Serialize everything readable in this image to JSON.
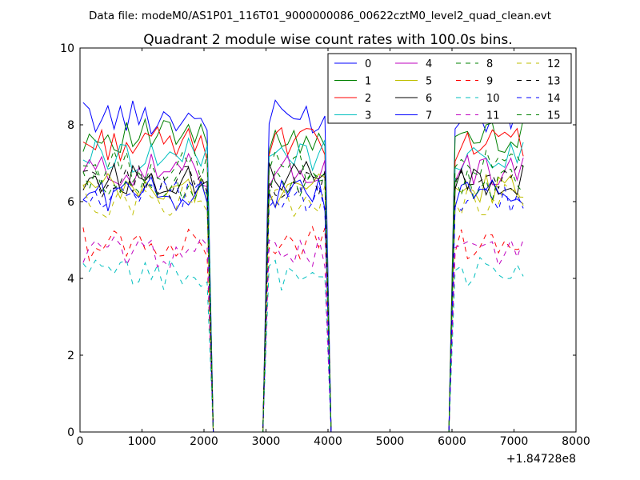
{
  "figure": {
    "suptitle": "Data file: modeM0/AS1P01_116T01_9000000086_00622cztM0_level2_quad_clean.evt"
  },
  "chart_data": {
    "type": "line",
    "title": "Quadrant 2 module wise count rates with 100.0s bins.",
    "xlabel": "",
    "ylabel": "",
    "x_offset_label": "+1.84728e8",
    "xlim": [
      0,
      8000
    ],
    "ylim": [
      0,
      10
    ],
    "xticks": [
      0,
      1000,
      2000,
      3000,
      4000,
      5000,
      6000,
      7000,
      8000
    ],
    "yticks": [
      0,
      2,
      4,
      6,
      8,
      10
    ],
    "grid": false,
    "legend_placement": "top-right",
    "x": [
      50,
      150,
      250,
      350,
      450,
      550,
      650,
      750,
      850,
      950,
      1050,
      1150,
      1250,
      1350,
      1450,
      1550,
      1650,
      1750,
      1850,
      1950,
      2050,
      2150,
      2250,
      2350,
      2450,
      2550,
      2650,
      2750,
      2850,
      2950,
      3050,
      3150,
      3250,
      3350,
      3450,
      3550,
      3650,
      3750,
      3850,
      3950,
      4050,
      4150,
      4250,
      4350,
      4450,
      4550,
      4650,
      4750,
      4850,
      4950,
      5050,
      5150,
      5250,
      5350,
      5450,
      5550,
      5650,
      5750,
      5850,
      5950,
      6050,
      6150,
      6250,
      6350,
      6450,
      6550,
      6650,
      6750,
      6850,
      6950,
      7050,
      7150
    ],
    "series": [
      {
        "name": "0",
        "color": "#0000ff",
        "dash": "solid",
        "level": 8.2,
        "seed": 1
      },
      {
        "name": "1",
        "color": "#008000",
        "dash": "solid",
        "level": 7.7,
        "seed": 2
      },
      {
        "name": "2",
        "color": "#ff0000",
        "dash": "solid",
        "level": 7.5,
        "seed": 3
      },
      {
        "name": "3",
        "color": "#00bfbf",
        "dash": "solid",
        "level": 7.2,
        "seed": 4
      },
      {
        "name": "4",
        "color": "#bf00bf",
        "dash": "solid",
        "level": 6.8,
        "seed": 5
      },
      {
        "name": "5",
        "color": "#bfbf00",
        "dash": "solid",
        "level": 6.3,
        "seed": 6
      },
      {
        "name": "6",
        "color": "#000000",
        "dash": "solid",
        "level": 6.6,
        "seed": 7
      },
      {
        "name": "7",
        "color": "#0000ff",
        "dash": "solid",
        "level": 6.2,
        "seed": 8
      },
      {
        "name": "8",
        "color": "#008000",
        "dash": "dashed",
        "level": 6.9,
        "seed": 9
      },
      {
        "name": "9",
        "color": "#ff0000",
        "dash": "dashed",
        "level": 4.9,
        "seed": 10
      },
      {
        "name": "10",
        "color": "#00bfbf",
        "dash": "dashed",
        "level": 4.1,
        "seed": 11
      },
      {
        "name": "11",
        "color": "#bf00bf",
        "dash": "dashed",
        "level": 4.7,
        "seed": 12
      },
      {
        "name": "12",
        "color": "#bfbf00",
        "dash": "dashed",
        "level": 6.0,
        "seed": 13
      },
      {
        "name": "13",
        "color": "#000000",
        "dash": "dashed",
        "level": 6.5,
        "seed": 14
      },
      {
        "name": "14",
        "color": "#0000ff",
        "dash": "dashed",
        "level": 6.1,
        "seed": 15
      },
      {
        "name": "15",
        "color": "#008000",
        "dash": "dashed",
        "level": 6.4,
        "seed": 16
      }
    ],
    "active_segments": [
      [
        0,
        2050
      ],
      [
        3050,
        3950
      ],
      [
        6050,
        7150
      ]
    ]
  }
}
